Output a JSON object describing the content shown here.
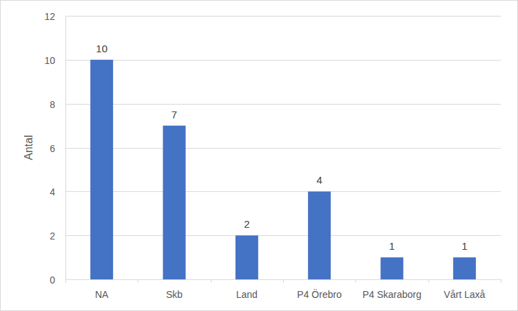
{
  "chart_data": {
    "type": "bar",
    "y_label": "Antal",
    "categories": [
      "NA",
      "Skb",
      "Land",
      "P4 Örebro",
      "P4 Skaraborg",
      "Vårt Laxå"
    ],
    "values": [
      10,
      7,
      2,
      4,
      1,
      1
    ],
    "color": "#4472c4",
    "ylim": [
      0,
      12
    ],
    "yticks": [
      0,
      2,
      4,
      6,
      8,
      10,
      12
    ],
    "grid": true,
    "data_labels": true
  }
}
